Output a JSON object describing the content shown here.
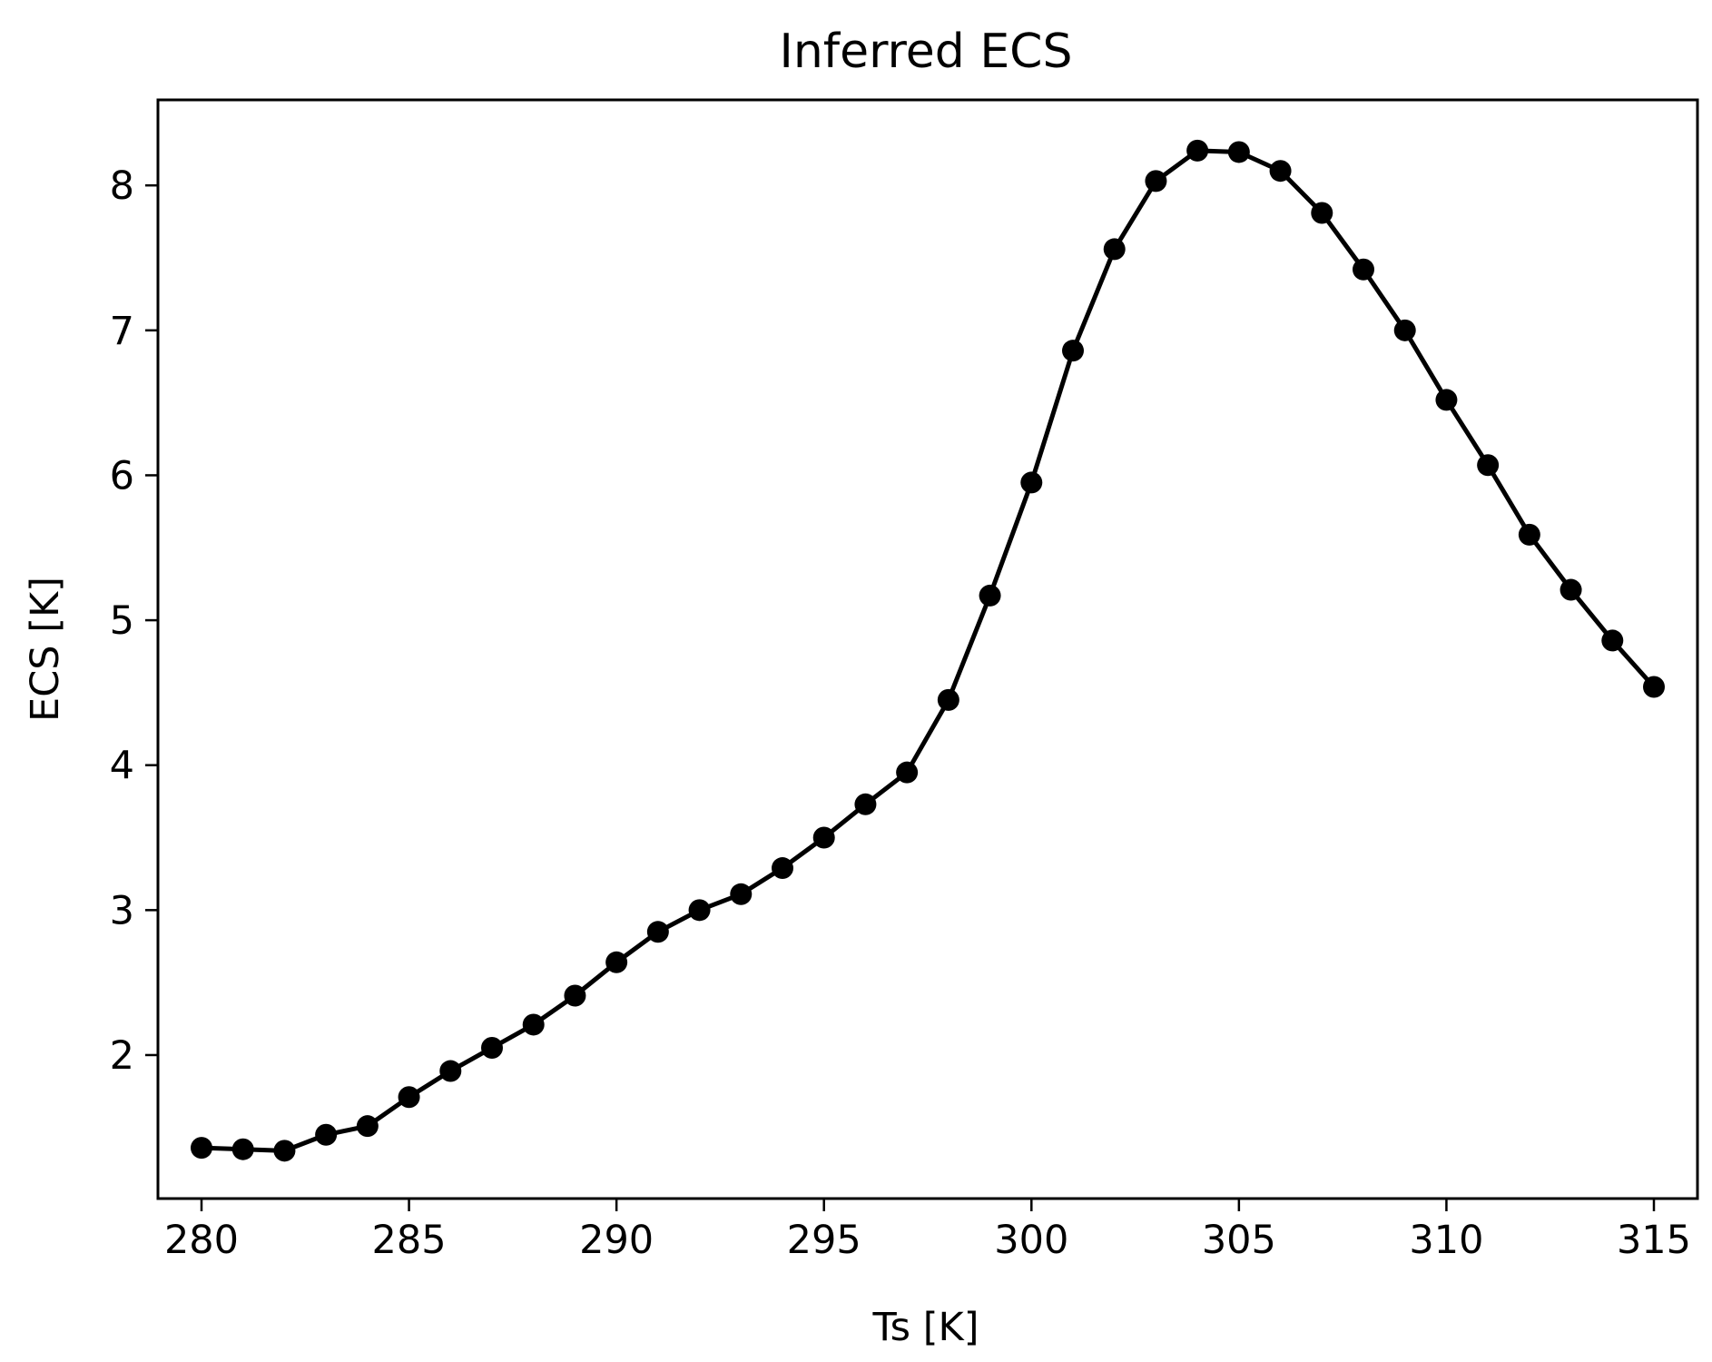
{
  "chart_data": {
    "type": "line",
    "title": "Inferred ECS",
    "xlabel": "Ts [K]",
    "ylabel": "ECS [K]",
    "xlim": [
      278.95,
      316.05
    ],
    "ylim": [
      1.01,
      8.59
    ],
    "grid": false,
    "legend": "none",
    "x_ticks": [
      280,
      285,
      290,
      295,
      300,
      305,
      310,
      315
    ],
    "x_tick_labels": [
      "280",
      "285",
      "290",
      "295",
      "300",
      "305",
      "310",
      "315"
    ],
    "y_ticks": [
      2,
      3,
      4,
      5,
      6,
      7,
      8
    ],
    "y_tick_labels": [
      "2",
      "3",
      "4",
      "5",
      "6",
      "7",
      "8"
    ],
    "marker": "circle",
    "series": [
      {
        "color": "#000000",
        "x": [
          280,
          281,
          282,
          283,
          284,
          285,
          286,
          287,
          288,
          289,
          290,
          291,
          292,
          293,
          294,
          295,
          296,
          297,
          298,
          299,
          300,
          301,
          302,
          303,
          304,
          305,
          306,
          307,
          308,
          309,
          310,
          311,
          312,
          313,
          314,
          315
        ],
        "y": [
          1.36,
          1.35,
          1.34,
          1.45,
          1.51,
          1.71,
          1.89,
          2.05,
          2.21,
          2.41,
          2.64,
          2.85,
          3.0,
          3.11,
          3.29,
          3.5,
          3.73,
          3.95,
          4.45,
          5.17,
          5.95,
          6.86,
          7.56,
          8.03,
          8.24,
          8.23,
          8.1,
          7.81,
          7.42,
          7.0,
          6.52,
          6.07,
          5.59,
          5.21,
          4.86,
          4.54
        ]
      }
    ]
  }
}
